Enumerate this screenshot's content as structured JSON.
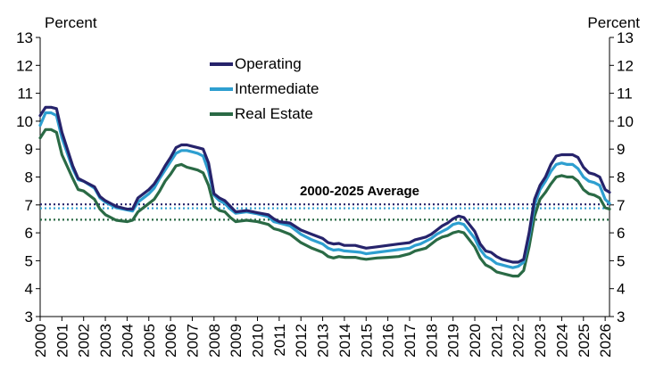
{
  "colors": {
    "operating": "#26236b",
    "intermediate": "#2e9fd0",
    "real_estate": "#2a6a45"
  },
  "chart_data": {
    "type": "line",
    "y_unit_left": "Percent",
    "y_unit_right": "Percent",
    "ylim": [
      3,
      13
    ],
    "y_ticks": [
      3,
      4,
      5,
      6,
      7,
      8,
      9,
      10,
      11,
      12,
      13
    ],
    "xlim": [
      2000,
      2026.2
    ],
    "x_ticks": [
      "2000",
      "2001",
      "2002",
      "2003",
      "2004",
      "2005",
      "2006",
      "2007",
      "2008",
      "2009",
      "2010",
      "2011",
      "2012",
      "2013",
      "2014",
      "2015",
      "2016",
      "2017",
      "2018",
      "2019",
      "2020",
      "2021",
      "2022",
      "2023",
      "2024",
      "2025",
      "2026"
    ],
    "annotation": "2000-2025 Average",
    "averages": [
      {
        "series": "Operating",
        "value": 7.02
      },
      {
        "series": "Intermediate",
        "value": 6.88
      },
      {
        "series": "Real Estate",
        "value": 6.47
      }
    ],
    "series": [
      {
        "name": "Operating",
        "points": [
          [
            2000.0,
            10.2
          ],
          [
            2000.25,
            10.5
          ],
          [
            2000.5,
            10.5
          ],
          [
            2000.75,
            10.45
          ],
          [
            2001.0,
            9.6
          ],
          [
            2001.5,
            8.4
          ],
          [
            2001.75,
            7.95
          ],
          [
            2002.0,
            7.85
          ],
          [
            2002.5,
            7.65
          ],
          [
            2002.75,
            7.3
          ],
          [
            2003.0,
            7.15
          ],
          [
            2003.5,
            6.95
          ],
          [
            2004.0,
            6.85
          ],
          [
            2004.25,
            6.85
          ],
          [
            2004.5,
            7.25
          ],
          [
            2005.0,
            7.55
          ],
          [
            2005.25,
            7.75
          ],
          [
            2005.5,
            8.05
          ],
          [
            2005.75,
            8.4
          ],
          [
            2006.0,
            8.7
          ],
          [
            2006.25,
            9.05
          ],
          [
            2006.5,
            9.15
          ],
          [
            2006.75,
            9.15
          ],
          [
            2007.0,
            9.1
          ],
          [
            2007.25,
            9.05
          ],
          [
            2007.5,
            9.0
          ],
          [
            2007.75,
            8.5
          ],
          [
            2008.0,
            7.4
          ],
          [
            2008.25,
            7.25
          ],
          [
            2008.5,
            7.15
          ],
          [
            2008.75,
            6.95
          ],
          [
            2009.0,
            6.75
          ],
          [
            2009.5,
            6.8
          ],
          [
            2010.0,
            6.72
          ],
          [
            2010.5,
            6.65
          ],
          [
            2010.75,
            6.5
          ],
          [
            2011.0,
            6.4
          ],
          [
            2011.5,
            6.35
          ],
          [
            2012.0,
            6.1
          ],
          [
            2012.5,
            5.95
          ],
          [
            2013.0,
            5.8
          ],
          [
            2013.25,
            5.65
          ],
          [
            2013.5,
            5.6
          ],
          [
            2013.75,
            5.62
          ],
          [
            2014.0,
            5.55
          ],
          [
            2014.5,
            5.55
          ],
          [
            2014.75,
            5.5
          ],
          [
            2015.0,
            5.45
          ],
          [
            2015.5,
            5.5
          ],
          [
            2016.0,
            5.55
          ],
          [
            2016.5,
            5.6
          ],
          [
            2017.0,
            5.65
          ],
          [
            2017.25,
            5.75
          ],
          [
            2017.5,
            5.8
          ],
          [
            2017.75,
            5.85
          ],
          [
            2018.0,
            5.95
          ],
          [
            2018.25,
            6.1
          ],
          [
            2018.5,
            6.25
          ],
          [
            2018.75,
            6.35
          ],
          [
            2019.0,
            6.5
          ],
          [
            2019.25,
            6.6
          ],
          [
            2019.5,
            6.55
          ],
          [
            2019.75,
            6.3
          ],
          [
            2020.0,
            6.05
          ],
          [
            2020.25,
            5.6
          ],
          [
            2020.5,
            5.35
          ],
          [
            2020.75,
            5.3
          ],
          [
            2021.0,
            5.15
          ],
          [
            2021.25,
            5.05
          ],
          [
            2021.5,
            5.0
          ],
          [
            2021.75,
            4.95
          ],
          [
            2022.0,
            4.95
          ],
          [
            2022.25,
            5.05
          ],
          [
            2022.5,
            6.0
          ],
          [
            2022.75,
            7.2
          ],
          [
            2023.0,
            7.7
          ],
          [
            2023.25,
            8.0
          ],
          [
            2023.5,
            8.45
          ],
          [
            2023.75,
            8.75
          ],
          [
            2024.0,
            8.8
          ],
          [
            2024.25,
            8.8
          ],
          [
            2024.5,
            8.8
          ],
          [
            2024.75,
            8.7
          ],
          [
            2025.0,
            8.35
          ],
          [
            2025.25,
            8.15
          ],
          [
            2025.5,
            8.1
          ],
          [
            2025.75,
            8.0
          ],
          [
            2026.0,
            7.55
          ],
          [
            2026.2,
            7.45
          ]
        ]
      },
      {
        "name": "Intermediate",
        "points": [
          [
            2000.0,
            9.85
          ],
          [
            2000.25,
            10.3
          ],
          [
            2000.5,
            10.3
          ],
          [
            2000.75,
            10.2
          ],
          [
            2001.0,
            9.4
          ],
          [
            2001.5,
            8.3
          ],
          [
            2001.75,
            7.9
          ],
          [
            2002.0,
            7.85
          ],
          [
            2002.5,
            7.6
          ],
          [
            2002.75,
            7.25
          ],
          [
            2003.0,
            7.1
          ],
          [
            2003.5,
            6.9
          ],
          [
            2004.0,
            6.82
          ],
          [
            2004.25,
            6.78
          ],
          [
            2004.5,
            7.1
          ],
          [
            2005.0,
            7.4
          ],
          [
            2005.25,
            7.6
          ],
          [
            2005.5,
            7.95
          ],
          [
            2005.75,
            8.25
          ],
          [
            2006.0,
            8.55
          ],
          [
            2006.25,
            8.85
          ],
          [
            2006.5,
            8.95
          ],
          [
            2006.75,
            8.95
          ],
          [
            2007.0,
            8.9
          ],
          [
            2007.25,
            8.85
          ],
          [
            2007.5,
            8.75
          ],
          [
            2007.75,
            8.2
          ],
          [
            2008.0,
            7.35
          ],
          [
            2008.25,
            7.15
          ],
          [
            2008.5,
            7.05
          ],
          [
            2008.75,
            6.85
          ],
          [
            2009.0,
            6.7
          ],
          [
            2009.5,
            6.75
          ],
          [
            2010.0,
            6.68
          ],
          [
            2010.5,
            6.58
          ],
          [
            2010.75,
            6.4
          ],
          [
            2011.0,
            6.35
          ],
          [
            2011.5,
            6.25
          ],
          [
            2012.0,
            5.95
          ],
          [
            2012.5,
            5.75
          ],
          [
            2013.0,
            5.6
          ],
          [
            2013.25,
            5.45
          ],
          [
            2013.5,
            5.38
          ],
          [
            2013.75,
            5.4
          ],
          [
            2014.0,
            5.35
          ],
          [
            2014.5,
            5.32
          ],
          [
            2014.75,
            5.3
          ],
          [
            2015.0,
            5.25
          ],
          [
            2015.5,
            5.3
          ],
          [
            2016.0,
            5.35
          ],
          [
            2016.5,
            5.4
          ],
          [
            2017.0,
            5.45
          ],
          [
            2017.25,
            5.55
          ],
          [
            2017.5,
            5.6
          ],
          [
            2017.75,
            5.7
          ],
          [
            2018.0,
            5.8
          ],
          [
            2018.25,
            5.95
          ],
          [
            2018.5,
            6.05
          ],
          [
            2018.75,
            6.15
          ],
          [
            2019.0,
            6.3
          ],
          [
            2019.25,
            6.35
          ],
          [
            2019.5,
            6.3
          ],
          [
            2019.75,
            6.05
          ],
          [
            2020.0,
            5.8
          ],
          [
            2020.25,
            5.4
          ],
          [
            2020.5,
            5.15
          ],
          [
            2020.75,
            5.05
          ],
          [
            2021.0,
            4.9
          ],
          [
            2021.25,
            4.85
          ],
          [
            2021.5,
            4.8
          ],
          [
            2021.75,
            4.75
          ],
          [
            2022.0,
            4.8
          ],
          [
            2022.25,
            4.95
          ],
          [
            2022.5,
            5.85
          ],
          [
            2022.75,
            7.0
          ],
          [
            2023.0,
            7.55
          ],
          [
            2023.25,
            7.85
          ],
          [
            2023.5,
            8.2
          ],
          [
            2023.75,
            8.45
          ],
          [
            2024.0,
            8.5
          ],
          [
            2024.25,
            8.45
          ],
          [
            2024.5,
            8.45
          ],
          [
            2024.75,
            8.3
          ],
          [
            2025.0,
            8.0
          ],
          [
            2025.25,
            7.85
          ],
          [
            2025.5,
            7.8
          ],
          [
            2025.75,
            7.7
          ],
          [
            2026.0,
            7.2
          ],
          [
            2026.2,
            7.05
          ]
        ]
      },
      {
        "name": "Real Estate",
        "points": [
          [
            2000.0,
            9.4
          ],
          [
            2000.25,
            9.7
          ],
          [
            2000.5,
            9.7
          ],
          [
            2000.75,
            9.6
          ],
          [
            2001.0,
            8.8
          ],
          [
            2001.5,
            7.95
          ],
          [
            2001.75,
            7.55
          ],
          [
            2002.0,
            7.5
          ],
          [
            2002.5,
            7.2
          ],
          [
            2002.75,
            6.85
          ],
          [
            2003.0,
            6.65
          ],
          [
            2003.5,
            6.45
          ],
          [
            2004.0,
            6.4
          ],
          [
            2004.25,
            6.45
          ],
          [
            2004.5,
            6.75
          ],
          [
            2005.0,
            7.05
          ],
          [
            2005.25,
            7.2
          ],
          [
            2005.5,
            7.5
          ],
          [
            2005.75,
            7.85
          ],
          [
            2006.0,
            8.1
          ],
          [
            2006.25,
            8.4
          ],
          [
            2006.5,
            8.45
          ],
          [
            2006.75,
            8.35
          ],
          [
            2007.0,
            8.3
          ],
          [
            2007.25,
            8.25
          ],
          [
            2007.5,
            8.15
          ],
          [
            2007.75,
            7.7
          ],
          [
            2008.0,
            6.95
          ],
          [
            2008.25,
            6.8
          ],
          [
            2008.5,
            6.75
          ],
          [
            2008.75,
            6.55
          ],
          [
            2009.0,
            6.4
          ],
          [
            2009.5,
            6.45
          ],
          [
            2010.0,
            6.4
          ],
          [
            2010.5,
            6.3
          ],
          [
            2010.75,
            6.15
          ],
          [
            2011.0,
            6.1
          ],
          [
            2011.5,
            5.95
          ],
          [
            2012.0,
            5.65
          ],
          [
            2012.5,
            5.45
          ],
          [
            2013.0,
            5.3
          ],
          [
            2013.25,
            5.15
          ],
          [
            2013.5,
            5.1
          ],
          [
            2013.75,
            5.15
          ],
          [
            2014.0,
            5.12
          ],
          [
            2014.5,
            5.12
          ],
          [
            2014.75,
            5.08
          ],
          [
            2015.0,
            5.05
          ],
          [
            2015.5,
            5.1
          ],
          [
            2016.0,
            5.12
          ],
          [
            2016.5,
            5.15
          ],
          [
            2017.0,
            5.25
          ],
          [
            2017.25,
            5.35
          ],
          [
            2017.5,
            5.4
          ],
          [
            2017.75,
            5.45
          ],
          [
            2018.0,
            5.6
          ],
          [
            2018.25,
            5.75
          ],
          [
            2018.5,
            5.85
          ],
          [
            2018.75,
            5.9
          ],
          [
            2019.0,
            6.0
          ],
          [
            2019.25,
            6.05
          ],
          [
            2019.5,
            6.0
          ],
          [
            2019.75,
            5.75
          ],
          [
            2020.0,
            5.5
          ],
          [
            2020.25,
            5.1
          ],
          [
            2020.5,
            4.85
          ],
          [
            2020.75,
            4.75
          ],
          [
            2021.0,
            4.6
          ],
          [
            2021.25,
            4.55
          ],
          [
            2021.5,
            4.5
          ],
          [
            2021.75,
            4.45
          ],
          [
            2022.0,
            4.45
          ],
          [
            2022.25,
            4.65
          ],
          [
            2022.5,
            5.5
          ],
          [
            2022.75,
            6.6
          ],
          [
            2023.0,
            7.2
          ],
          [
            2023.25,
            7.45
          ],
          [
            2023.5,
            7.75
          ],
          [
            2023.75,
            8.0
          ],
          [
            2024.0,
            8.05
          ],
          [
            2024.25,
            8.0
          ],
          [
            2024.5,
            8.0
          ],
          [
            2024.75,
            7.85
          ],
          [
            2025.0,
            7.55
          ],
          [
            2025.25,
            7.4
          ],
          [
            2025.5,
            7.35
          ],
          [
            2025.75,
            7.25
          ],
          [
            2026.0,
            6.9
          ],
          [
            2026.2,
            6.85
          ]
        ]
      }
    ]
  }
}
